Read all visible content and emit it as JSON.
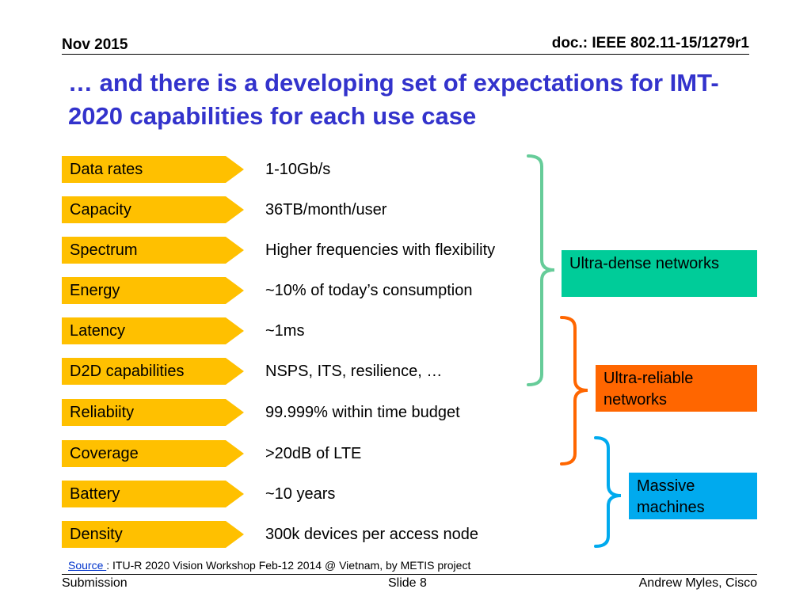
{
  "header": {
    "date": "Nov 2015",
    "doc": "doc.: IEEE 802.11-15/1279r1"
  },
  "title": "… and there is a developing set of expectations for IMT-2020 capabilities for each use case",
  "rows": [
    {
      "label": "Data rates",
      "value": "1-10Gb/s"
    },
    {
      "label": "Capacity",
      "value": "36TB/month/user"
    },
    {
      "label": "Spectrum",
      "value": "Higher frequencies with flexibility"
    },
    {
      "label": "Energy",
      "value": "~10% of today’s consumption"
    },
    {
      "label": "Latency",
      "value": "~1ms"
    },
    {
      "label": "D2D capabilities",
      "value": "NSPS, ITS, resilience, …"
    },
    {
      "label": "Reliabiity",
      "value": "99.999% within time budget"
    },
    {
      "label": "Coverage",
      "value": ">20dB of LTE"
    },
    {
      "label": "Battery",
      "value": "~10 years"
    },
    {
      "label": "Density",
      "value": "300k devices per access node"
    }
  ],
  "use_cases": [
    {
      "label": "Ultra-dense networks",
      "color": "#00cc99"
    },
    {
      "label": "Ultra-reliable networks",
      "color": "#ff6600"
    },
    {
      "label": "Massive machines",
      "color": "#00aaee"
    }
  ],
  "source": {
    "link_text": "Source ",
    "text": ":  ITU-R 2020 Vision Workshop Feb-12 2014 @ Vietnam, by METIS project"
  },
  "footer": {
    "left": "Submission",
    "center": "Slide 8",
    "right": "Andrew Myles, Cisco"
  },
  "colors": {
    "title": "#3333cc",
    "chevron": "#ffc000"
  }
}
